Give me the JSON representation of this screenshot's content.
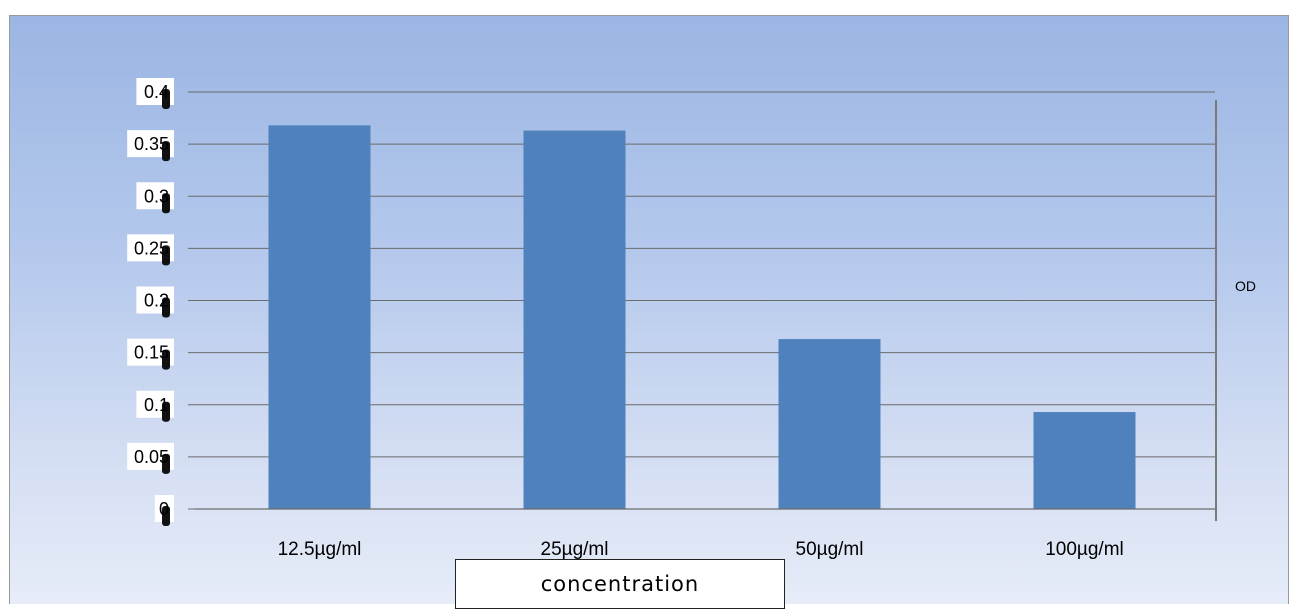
{
  "chart_data": {
    "type": "bar",
    "categories": [
      "12.5µg/ml",
      "25µg/ml",
      "50µg/ml",
      "100µg/ml"
    ],
    "series": [
      {
        "name": "OD",
        "values": [
          0.368,
          0.363,
          0.163,
          0.093
        ],
        "color": "#4f81bd"
      }
    ],
    "yticks": [
      "0",
      "0.05",
      "0.1",
      "0.15",
      "0.2",
      "0.25",
      "0.3",
      "0.35",
      "0.4"
    ],
    "ylim": [
      0,
      0.4
    ],
    "xlabel": "concentration",
    "ylabel": "",
    "legend": {
      "placement": "right",
      "entries": [
        "OD"
      ]
    },
    "grid": true
  }
}
